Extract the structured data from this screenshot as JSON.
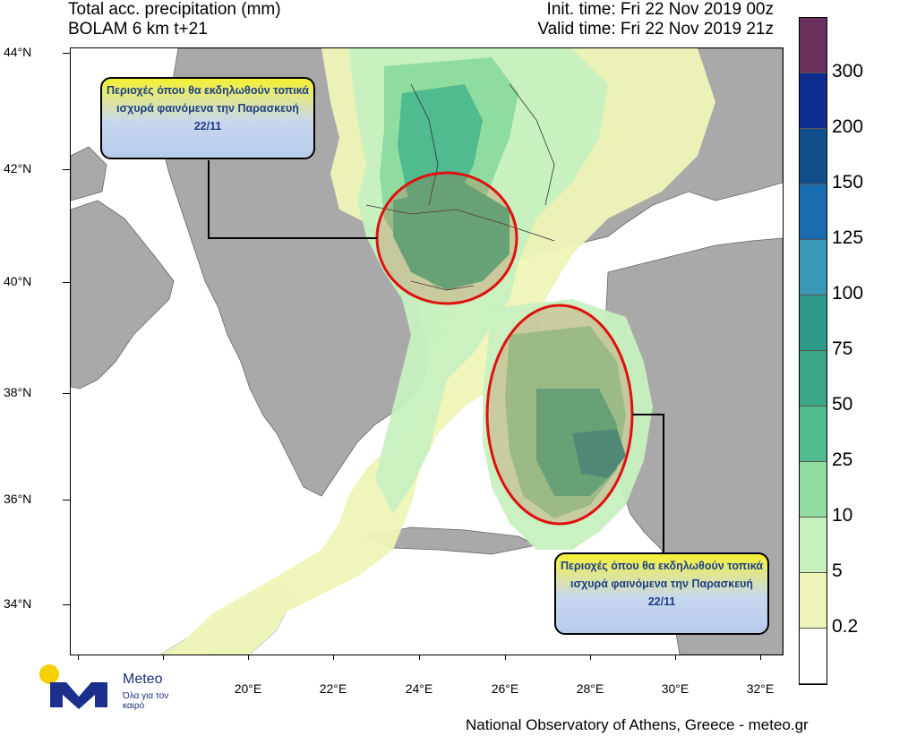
{
  "header": {
    "title_line1": "Total acc. precipitation (mm)",
    "title_line2": "BOLAM 6 km t+21",
    "init_time": "Init. time: Fri 22 Nov 2019 00z",
    "valid_time": "Valid time: Fri 22 Nov 2019 21z"
  },
  "axes": {
    "lat_labels": [
      "44°N",
      "42°N",
      "40°N",
      "38°N",
      "36°N",
      "34°N"
    ],
    "lon_labels": [
      "20°E",
      "22°E",
      "24°E",
      "26°E",
      "28°E",
      "30°E",
      "32°E"
    ]
  },
  "legend": {
    "labels": [
      "300",
      "200",
      "150",
      "125",
      "100",
      "75",
      "50",
      "25",
      "10",
      "5",
      "0.2"
    ],
    "colors": [
      "#6a2f5c",
      "#0f2d8f",
      "#124f8a",
      "#1a6cb0",
      "#3a98b6",
      "#2e9b8a",
      "#3aa886",
      "#4fbb8e",
      "#8fdca0",
      "#c7f0bf",
      "#eef4b7",
      "#ffffff"
    ]
  },
  "colors": {
    "land": "#a9a9a9",
    "sea": "#ffffff",
    "precip_light": "#eef4b7",
    "precip_green": "#c7f0bf",
    "precip_mid": "#8fdca0",
    "precip_strong": "#4fbb8e",
    "precip_heavy": "#2e9b8a",
    "highlight_ring": "#e01010"
  },
  "callouts": {
    "top_text": "Περιοχές όπου θα εκδηλωθούν τοπικά ισχυρά φαινόμενα την Παρασκευή 22/11",
    "bottom_text": "Περιοχές όπου θα εκδηλωθούν τοπικά ισχυρά φαινόμενα την Παρασκευή 22/11"
  },
  "logo": {
    "word": "Meteo",
    "slogan": "Όλα για τον καιρό"
  },
  "footer": "National Observatory of Athens, Greece - meteo.gr"
}
